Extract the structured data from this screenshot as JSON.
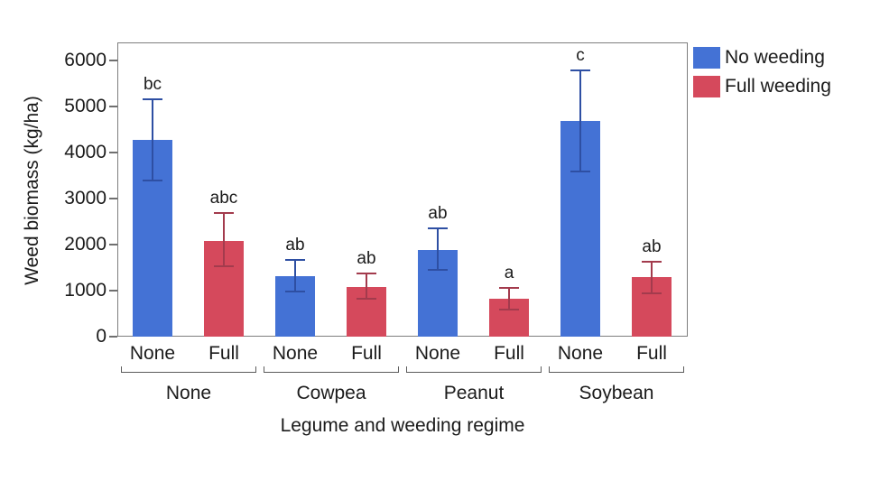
{
  "chart_data": {
    "type": "bar",
    "title": "",
    "xlabel": "Legume and weeding regime",
    "ylabel": "Weed biomass (kg/ha)",
    "ylim": [
      0,
      6400
    ],
    "yticks": [
      0,
      1000,
      2000,
      3000,
      4000,
      5000,
      6000
    ],
    "grid": false,
    "legend_position": "top-right",
    "groups": [
      "None",
      "Cowpea",
      "Peanut",
      "Soybean"
    ],
    "regimes": [
      "None",
      "Full"
    ],
    "series": [
      {
        "name": "No weeding",
        "color": "#4472D5",
        "error_color": "#2E4FA3",
        "values": [
          4270,
          1310,
          1890,
          4690
        ],
        "error_low": [
          3390,
          980,
          1450,
          3590
        ],
        "error_high": [
          5160,
          1670,
          2360,
          5780
        ],
        "letters": [
          "bc",
          "ab",
          "ab",
          "c"
        ]
      },
      {
        "name": "Full weeding",
        "color": "#D5495C",
        "error_color": "#A33B4D",
        "values": [
          2080,
          1080,
          820,
          1290
        ],
        "error_low": [
          1520,
          820,
          590,
          950
        ],
        "error_high": [
          2680,
          1380,
          1060,
          1620
        ],
        "letters": [
          "abc",
          "ab",
          "a",
          "ab"
        ]
      }
    ]
  }
}
